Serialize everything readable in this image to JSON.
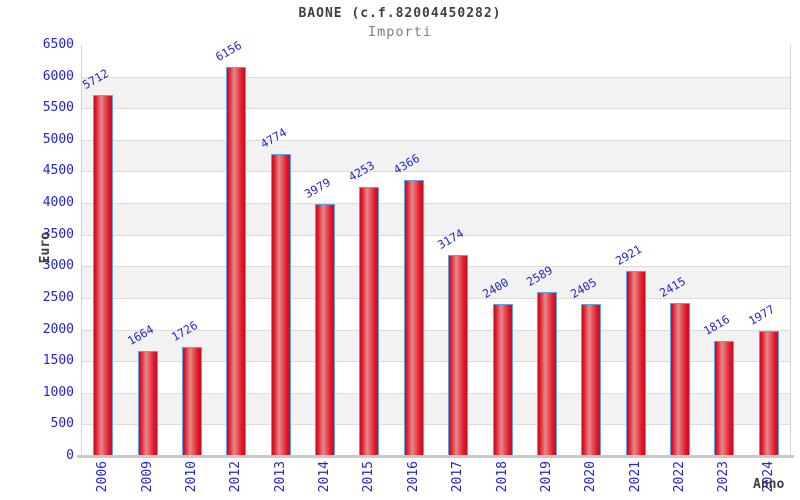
{
  "chart_data": {
    "type": "bar",
    "title": "BAONE (c.f.82004450282)",
    "subtitle": "Importi",
    "xlabel": "Anno",
    "ylabel": "Euro",
    "categories": [
      "2006",
      "2009",
      "2010",
      "2012",
      "2013",
      "2014",
      "2015",
      "2016",
      "2017",
      "2018",
      "2019",
      "2020",
      "2021",
      "2022",
      "2023",
      "2024"
    ],
    "values": [
      5712,
      1664,
      1726,
      6156,
      4774,
      3979,
      4253,
      4366,
      3174,
      2400,
      2589,
      2405,
      2921,
      2415,
      1816,
      1977
    ],
    "ylim": [
      0,
      6500
    ],
    "ytick_step": 500,
    "grid": "horizontal-bands",
    "legend": "none",
    "colors": {
      "bar_edge": "#c01020",
      "bar_bright": "#e8192b",
      "bar_highlight": "#e08c8c",
      "bar_border": "#58a6e8",
      "tick_label": "#2424cc",
      "value_label": "#2424cc",
      "title": "#3f3f3f",
      "subtitle": "#7f7f7f",
      "axis_title": "#3f3f3f",
      "band_light": "#ffffff",
      "band_dark": "#f2f2f2",
      "gridline": "#dcdcdc",
      "axis_line": "#c9c9c9",
      "plot_border": "#d4d4d4"
    }
  }
}
